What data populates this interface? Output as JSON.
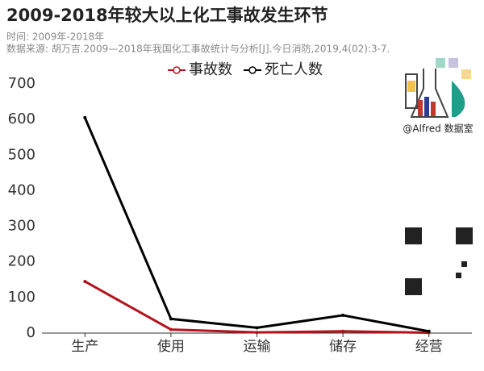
{
  "chart_data": {
    "type": "line",
    "title": "2009-2018年较大以上化工事故发生环节",
    "subtitle": [
      "时间: 2009年-2018年",
      "数据来源: 胡万吉.2009—2018年我国化工事故统计与分析[J].今日消防,2019,4(02):3-7."
    ],
    "logo_caption": "@Alfred 数据室",
    "categories": [
      "生产",
      "使用",
      "运输",
      "储存",
      "经营"
    ],
    "series": [
      {
        "name": "事故数",
        "color": "#b5121b",
        "values": [
          145,
          10,
          2,
          5,
          1
        ]
      },
      {
        "name": "死亡人数",
        "color": "#000000",
        "values": [
          605,
          40,
          15,
          50,
          5
        ]
      }
    ],
    "ylim": [
      0,
      700
    ],
    "yticks": [
      0,
      100,
      200,
      300,
      400,
      500,
      600,
      700
    ],
    "legend": "top",
    "grid": false
  }
}
